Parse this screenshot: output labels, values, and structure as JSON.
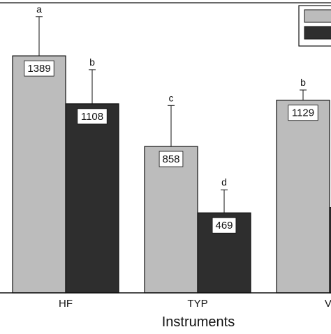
{
  "chart_data": {
    "type": "bar",
    "title": "",
    "xlabel": "Instruments",
    "ylabel": "",
    "categories": [
      "HF",
      "TYP",
      "VI"
    ],
    "ylim": [
      0,
      1700
    ],
    "grid": false,
    "legend_position": "top-right",
    "series": [
      {
        "color": "#bcbcbc",
        "values": [
          1389,
          858,
          1129
        ],
        "errors": [
          230,
          240,
          60
        ],
        "letters": [
          "a",
          "c",
          "b"
        ],
        "labels": [
          "1389",
          "858",
          "1129"
        ]
      },
      {
        "color": "#2e2e2e",
        "values": [
          1108,
          469,
          500
        ],
        "errors": [
          200,
          135,
          null
        ],
        "letters": [
          "b",
          "d",
          null
        ],
        "labels": [
          "1108",
          "469",
          null
        ]
      }
    ]
  }
}
